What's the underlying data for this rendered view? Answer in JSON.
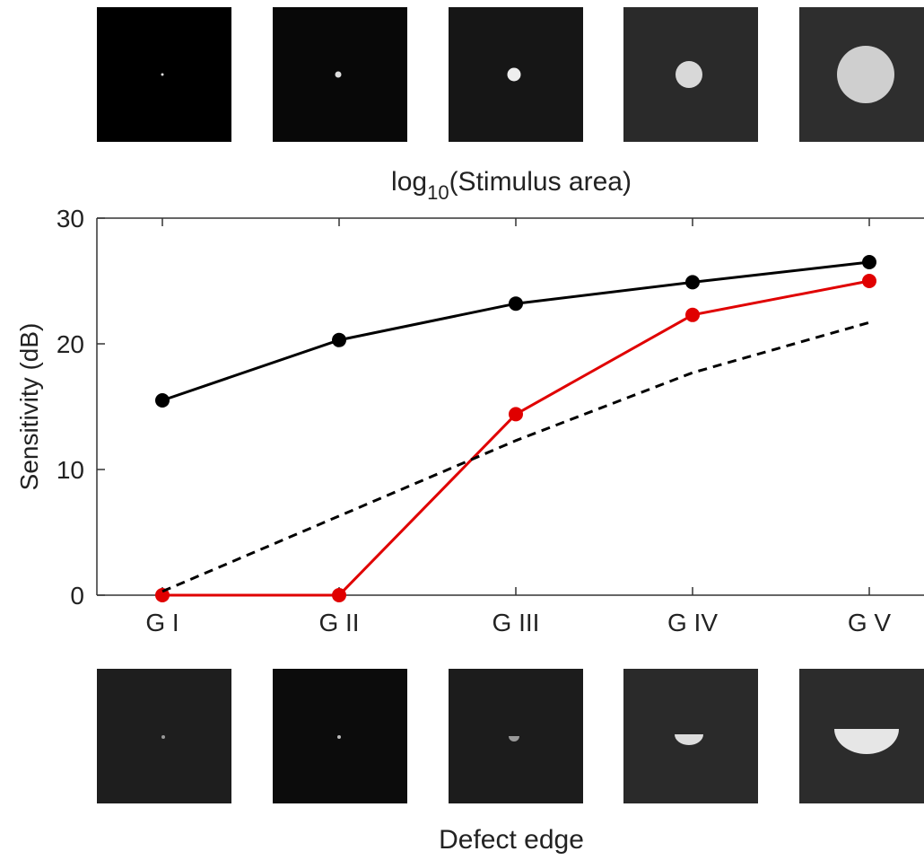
{
  "chart_data": {
    "type": "line",
    "x_label": {
      "base": "log",
      "subscript": "10",
      "rest": "(Stimulus area)"
    },
    "x_label_bottom": "Defect edge",
    "y_label": "Sensitivity (dB)",
    "categories": [
      "G I",
      "G II",
      "G III",
      "G IV",
      "G V"
    ],
    "series": [
      {
        "color": "#000000",
        "marker": true,
        "dashed": false,
        "values": [
          15.5,
          20.3,
          23.2,
          24.9,
          26.5
        ]
      },
      {
        "color": "#e00000",
        "marker": true,
        "dashed": true,
        "values": [
          0,
          0,
          14.4,
          22.3,
          25.0
        ]
      },
      {
        "color": "#000000",
        "marker": false,
        "dashed": true,
        "values": [
          0.3,
          6.3,
          12.3,
          17.7,
          21.7
        ]
      }
    ],
    "ylim": [
      0,
      30
    ],
    "yticks": [
      0,
      10,
      20,
      30
    ]
  }
}
